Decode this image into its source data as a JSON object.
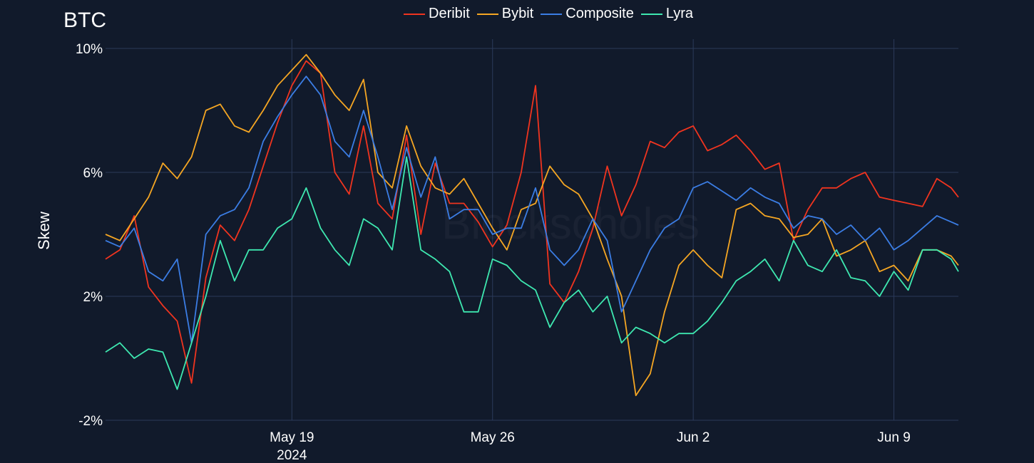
{
  "chart_data": {
    "type": "line",
    "title": "BTC",
    "ylabel": "Skew",
    "xlabel": "",
    "watermark": "Blockscholes",
    "ylim": [
      -2,
      10.3
    ],
    "xlim": [
      "2024-05-12T12:00",
      "2024-06-11T06:00"
    ],
    "y_ticks": [
      {
        "value": -2,
        "label": "-2%"
      },
      {
        "value": 2,
        "label": "2%"
      },
      {
        "value": 6,
        "label": "6%"
      },
      {
        "value": 10,
        "label": "10%"
      }
    ],
    "x_ticks": [
      {
        "value": "2024-05-19",
        "label": "May 19",
        "sublabel": "2024"
      },
      {
        "value": "2024-05-26",
        "label": "May 26",
        "sublabel": ""
      },
      {
        "value": "2024-06-02",
        "label": "Jun 2",
        "sublabel": ""
      },
      {
        "value": "2024-06-09",
        "label": "Jun 9",
        "sublabel": ""
      }
    ],
    "grid": true,
    "legend_position": "top-center",
    "series": [
      {
        "name": "Deribit",
        "color": "#f0341f",
        "x": [
          "2024-05-12T12:00",
          "2024-05-13T00:00",
          "2024-05-13T12:00",
          "2024-05-14T00:00",
          "2024-05-14T12:00",
          "2024-05-15T00:00",
          "2024-05-15T12:00",
          "2024-05-16T00:00",
          "2024-05-16T12:00",
          "2024-05-17T00:00",
          "2024-05-17T12:00",
          "2024-05-18T00:00",
          "2024-05-18T12:00",
          "2024-05-19T00:00",
          "2024-05-19T12:00",
          "2024-05-20T00:00",
          "2024-05-20T12:00",
          "2024-05-21T00:00",
          "2024-05-21T12:00",
          "2024-05-22T00:00",
          "2024-05-22T12:00",
          "2024-05-23T00:00",
          "2024-05-23T12:00",
          "2024-05-24T00:00",
          "2024-05-24T12:00",
          "2024-05-25T00:00",
          "2024-05-25T12:00",
          "2024-05-26T00:00",
          "2024-05-26T12:00",
          "2024-05-27T00:00",
          "2024-05-27T12:00",
          "2024-05-28T00:00",
          "2024-05-28T12:00",
          "2024-05-29T00:00",
          "2024-05-29T12:00",
          "2024-05-30T00:00",
          "2024-05-30T12:00",
          "2024-05-31T00:00",
          "2024-05-31T12:00",
          "2024-06-01T00:00",
          "2024-06-01T12:00",
          "2024-06-02T00:00",
          "2024-06-02T12:00",
          "2024-06-03T00:00",
          "2024-06-03T12:00",
          "2024-06-04T00:00",
          "2024-06-04T12:00",
          "2024-06-05T00:00",
          "2024-06-05T12:00",
          "2024-06-06T00:00",
          "2024-06-06T12:00",
          "2024-06-07T00:00",
          "2024-06-07T12:00",
          "2024-06-08T00:00",
          "2024-06-08T12:00",
          "2024-06-09T00:00",
          "2024-06-09T12:00",
          "2024-06-10T00:00",
          "2024-06-10T12:00",
          "2024-06-11T00:00",
          "2024-06-11T06:00"
        ],
        "values": [
          3.2,
          3.5,
          4.6,
          2.3,
          1.7,
          1.2,
          -0.8,
          2.6,
          4.3,
          3.8,
          4.8,
          6.2,
          7.6,
          8.8,
          9.6,
          9.2,
          6.0,
          5.3,
          7.5,
          5.0,
          4.5,
          7.2,
          4.0,
          6.3,
          5.0,
          5.0,
          4.4,
          3.6,
          4.3,
          6.0,
          8.8,
          2.4,
          1.8,
          2.8,
          4.2,
          6.2,
          4.6,
          5.6,
          7.0,
          6.8,
          7.3,
          7.5,
          6.7,
          6.9,
          7.2,
          6.7,
          6.1,
          6.3,
          3.8,
          4.8,
          5.5,
          5.5,
          5.8,
          6.0,
          5.2,
          5.1,
          5.0,
          4.9,
          5.8,
          5.5,
          5.2
        ]
      },
      {
        "name": "Bybit",
        "color": "#f5a623",
        "x": [
          "2024-05-12T12:00",
          "2024-05-13T00:00",
          "2024-05-13T12:00",
          "2024-05-14T00:00",
          "2024-05-14T12:00",
          "2024-05-15T00:00",
          "2024-05-15T12:00",
          "2024-05-16T00:00",
          "2024-05-16T12:00",
          "2024-05-17T00:00",
          "2024-05-17T12:00",
          "2024-05-18T00:00",
          "2024-05-18T12:00",
          "2024-05-19T00:00",
          "2024-05-19T12:00",
          "2024-05-20T00:00",
          "2024-05-20T12:00",
          "2024-05-21T00:00",
          "2024-05-21T12:00",
          "2024-05-22T00:00",
          "2024-05-22T12:00",
          "2024-05-23T00:00",
          "2024-05-23T12:00",
          "2024-05-24T00:00",
          "2024-05-24T12:00",
          "2024-05-25T00:00",
          "2024-05-25T12:00",
          "2024-05-26T00:00",
          "2024-05-26T12:00",
          "2024-05-27T00:00",
          "2024-05-27T12:00",
          "2024-05-28T00:00",
          "2024-05-28T12:00",
          "2024-05-29T00:00",
          "2024-05-29T12:00",
          "2024-05-30T00:00",
          "2024-05-30T12:00",
          "2024-05-31T00:00",
          "2024-05-31T12:00",
          "2024-06-01T00:00",
          "2024-06-01T12:00",
          "2024-06-02T00:00",
          "2024-06-02T12:00",
          "2024-06-03T00:00",
          "2024-06-03T12:00",
          "2024-06-04T00:00",
          "2024-06-04T12:00",
          "2024-06-05T00:00",
          "2024-06-05T12:00",
          "2024-06-06T00:00",
          "2024-06-06T12:00",
          "2024-06-07T00:00",
          "2024-06-07T12:00",
          "2024-06-08T00:00",
          "2024-06-08T12:00",
          "2024-06-09T00:00",
          "2024-06-09T12:00",
          "2024-06-10T00:00",
          "2024-06-10T12:00",
          "2024-06-11T00:00",
          "2024-06-11T06:00"
        ],
        "values": [
          4.0,
          3.8,
          4.5,
          5.2,
          6.3,
          5.8,
          6.5,
          8.0,
          8.2,
          7.5,
          7.3,
          8.0,
          8.8,
          9.3,
          9.8,
          9.2,
          8.5,
          8.0,
          9.0,
          6.0,
          5.5,
          7.5,
          6.2,
          5.5,
          5.3,
          5.8,
          5.0,
          4.2,
          3.5,
          4.8,
          5.0,
          6.2,
          5.6,
          5.3,
          4.5,
          3.2,
          2.0,
          -1.2,
          -0.5,
          1.5,
          3.0,
          3.5,
          3.0,
          2.6,
          4.8,
          5.0,
          4.6,
          4.5,
          3.9,
          4.0,
          4.5,
          3.3,
          3.5,
          3.8,
          2.8,
          3.0,
          2.5,
          3.5,
          3.5,
          3.3,
          3.0
        ]
      },
      {
        "name": "Composite",
        "color": "#3b7de4",
        "x": [
          "2024-05-12T12:00",
          "2024-05-13T00:00",
          "2024-05-13T12:00",
          "2024-05-14T00:00",
          "2024-05-14T12:00",
          "2024-05-15T00:00",
          "2024-05-15T12:00",
          "2024-05-16T00:00",
          "2024-05-16T12:00",
          "2024-05-17T00:00",
          "2024-05-17T12:00",
          "2024-05-18T00:00",
          "2024-05-18T12:00",
          "2024-05-19T00:00",
          "2024-05-19T12:00",
          "2024-05-20T00:00",
          "2024-05-20T12:00",
          "2024-05-21T00:00",
          "2024-05-21T12:00",
          "2024-05-22T00:00",
          "2024-05-22T12:00",
          "2024-05-23T00:00",
          "2024-05-23T12:00",
          "2024-05-24T00:00",
          "2024-05-24T12:00",
          "2024-05-25T00:00",
          "2024-05-25T12:00",
          "2024-05-26T00:00",
          "2024-05-26T12:00",
          "2024-05-27T00:00",
          "2024-05-27T12:00",
          "2024-05-28T00:00",
          "2024-05-28T12:00",
          "2024-05-29T00:00",
          "2024-05-29T12:00",
          "2024-05-30T00:00",
          "2024-05-30T12:00",
          "2024-05-31T00:00",
          "2024-05-31T12:00",
          "2024-06-01T00:00",
          "2024-06-01T12:00",
          "2024-06-02T00:00",
          "2024-06-02T12:00",
          "2024-06-03T00:00",
          "2024-06-03T12:00",
          "2024-06-04T00:00",
          "2024-06-04T12:00",
          "2024-06-05T00:00",
          "2024-06-05T12:00",
          "2024-06-06T00:00",
          "2024-06-06T12:00",
          "2024-06-07T00:00",
          "2024-06-07T12:00",
          "2024-06-08T00:00",
          "2024-06-08T12:00",
          "2024-06-09T00:00",
          "2024-06-09T12:00",
          "2024-06-10T00:00",
          "2024-06-10T12:00",
          "2024-06-11T00:00",
          "2024-06-11T06:00"
        ],
        "values": [
          3.8,
          3.6,
          4.2,
          2.8,
          2.5,
          3.2,
          0.5,
          4.0,
          4.6,
          4.8,
          5.5,
          7.0,
          7.8,
          8.5,
          9.1,
          8.5,
          7.0,
          6.5,
          8.0,
          6.5,
          4.8,
          6.8,
          5.2,
          6.5,
          4.5,
          4.8,
          4.8,
          4.0,
          4.2,
          4.2,
          5.5,
          3.5,
          3.0,
          3.5,
          4.5,
          3.8,
          1.5,
          2.5,
          3.5,
          4.2,
          4.5,
          5.5,
          5.7,
          5.4,
          5.1,
          5.5,
          5.2,
          5.0,
          4.2,
          4.6,
          4.5,
          4.0,
          4.3,
          3.8,
          4.2,
          3.5,
          3.8,
          4.2,
          4.6,
          4.4,
          4.3
        ]
      },
      {
        "name": "Lyra",
        "color": "#3ee8b0",
        "x": [
          "2024-05-12T12:00",
          "2024-05-13T00:00",
          "2024-05-13T12:00",
          "2024-05-14T00:00",
          "2024-05-14T12:00",
          "2024-05-15T00:00",
          "2024-05-15T12:00",
          "2024-05-16T00:00",
          "2024-05-16T12:00",
          "2024-05-17T00:00",
          "2024-05-17T12:00",
          "2024-05-18T00:00",
          "2024-05-18T12:00",
          "2024-05-19T00:00",
          "2024-05-19T12:00",
          "2024-05-20T00:00",
          "2024-05-20T12:00",
          "2024-05-21T00:00",
          "2024-05-21T12:00",
          "2024-05-22T00:00",
          "2024-05-22T12:00",
          "2024-05-23T00:00",
          "2024-05-23T12:00",
          "2024-05-24T00:00",
          "2024-05-24T12:00",
          "2024-05-25T00:00",
          "2024-05-25T12:00",
          "2024-05-26T00:00",
          "2024-05-26T12:00",
          "2024-05-27T00:00",
          "2024-05-27T12:00",
          "2024-05-28T00:00",
          "2024-05-28T12:00",
          "2024-05-29T00:00",
          "2024-05-29T12:00",
          "2024-05-30T00:00",
          "2024-05-30T12:00",
          "2024-05-31T00:00",
          "2024-05-31T12:00",
          "2024-06-01T00:00",
          "2024-06-01T12:00",
          "2024-06-02T00:00",
          "2024-06-02T12:00",
          "2024-06-03T00:00",
          "2024-06-03T12:00",
          "2024-06-04T00:00",
          "2024-06-04T12:00",
          "2024-06-05T00:00",
          "2024-06-05T12:00",
          "2024-06-06T00:00",
          "2024-06-06T12:00",
          "2024-06-07T00:00",
          "2024-06-07T12:00",
          "2024-06-08T00:00",
          "2024-06-08T12:00",
          "2024-06-09T00:00",
          "2024-06-09T12:00",
          "2024-06-10T00:00",
          "2024-06-10T12:00",
          "2024-06-11T00:00",
          "2024-06-11T06:00"
        ],
        "values": [
          0.2,
          0.5,
          0.0,
          0.3,
          0.2,
          -1.0,
          0.5,
          2.0,
          3.8,
          2.5,
          3.5,
          3.5,
          4.2,
          4.5,
          5.5,
          4.2,
          3.5,
          3.0,
          4.5,
          4.2,
          3.5,
          6.5,
          3.5,
          3.2,
          2.8,
          1.5,
          1.5,
          3.2,
          3.0,
          2.5,
          2.2,
          1.0,
          1.8,
          2.2,
          1.5,
          2.0,
          0.5,
          1.0,
          0.8,
          0.5,
          0.8,
          0.8,
          1.2,
          1.8,
          2.5,
          2.8,
          3.2,
          2.5,
          3.8,
          3.0,
          2.8,
          3.5,
          2.6,
          2.5,
          2.0,
          2.8,
          2.2,
          3.5,
          3.5,
          3.2,
          2.8
        ]
      }
    ]
  }
}
